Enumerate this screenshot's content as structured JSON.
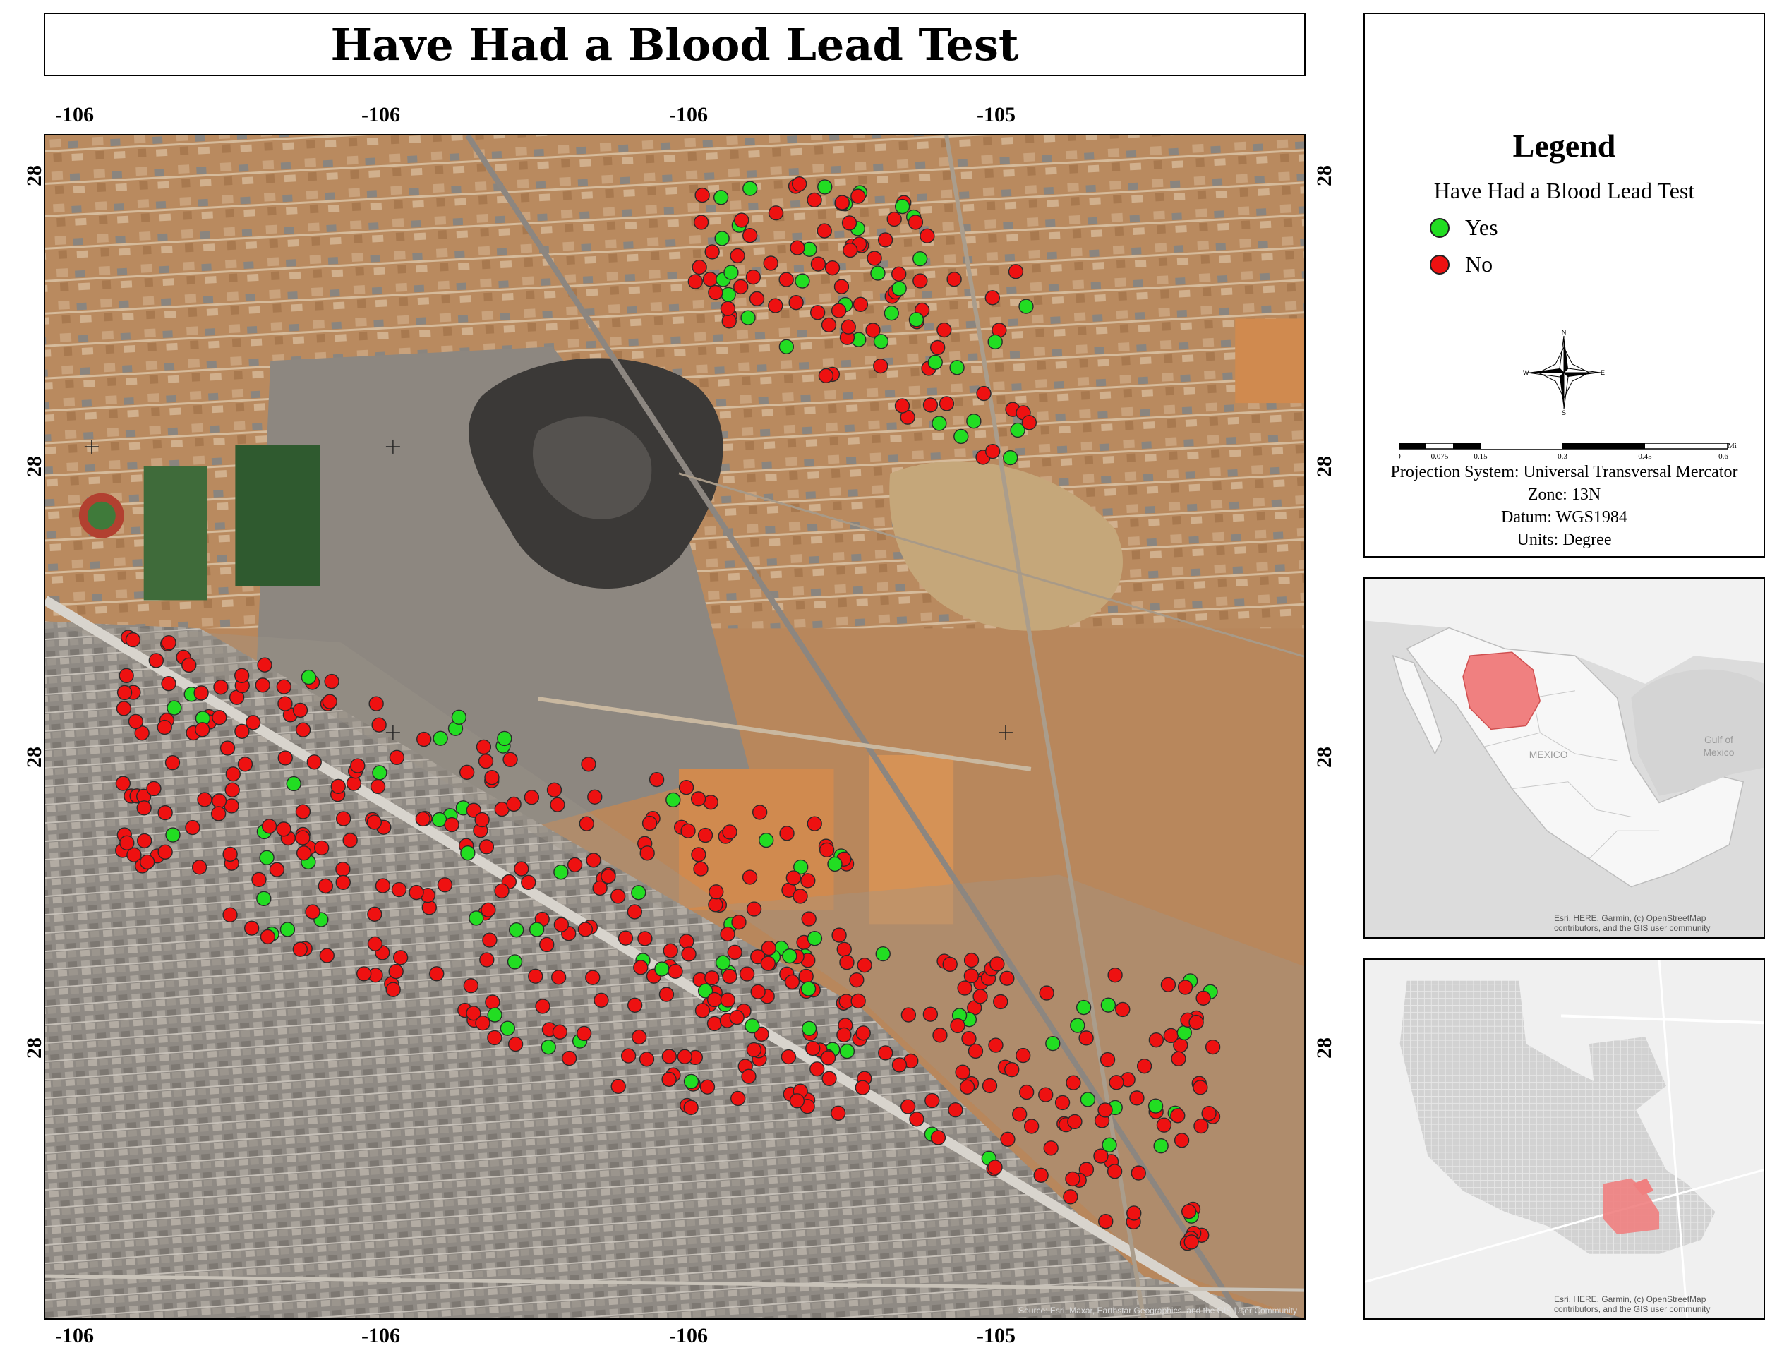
{
  "title": "Have Had a Blood Lead Test",
  "axes": {
    "top_ticks": [
      "-106",
      "-106",
      "-106",
      "-105"
    ],
    "bottom_ticks": [
      "-106",
      "-106",
      "-106",
      "-105"
    ],
    "left_ticks": [
      "28",
      "28",
      "28",
      "28"
    ],
    "right_ticks": [
      "28",
      "28",
      "28",
      "28"
    ]
  },
  "legend": {
    "title": "Legend",
    "subtitle": "Have Had a Blood Lead Test",
    "items": [
      {
        "label": "Yes",
        "color": "#22dd22"
      },
      {
        "label": "No",
        "color": "#ee1111"
      }
    ],
    "compass_letters": {
      "n": "N",
      "s": "S",
      "e": "E",
      "w": "W"
    },
    "scale_ticks": [
      "0",
      "0.075",
      "0.15",
      "0.3",
      "0.45",
      "0.6"
    ],
    "scale_unit": "Miles",
    "projection": "Projection System: Universal Transversal Mercator",
    "zone": "Zone: 13N",
    "datum": "Datum: WGS1984",
    "units": "Units: Degree"
  },
  "map_attribution": "Source: Esri, Maxar, Earthstar Geographics, and the GIS User Community",
  "inset_mexico": {
    "labels": [
      "Gulf of",
      "Mexico",
      "MEXICO"
    ],
    "attribution_line1": "Esri, HERE, Garmin, (c) OpenStreetMap",
    "attribution_line2": "contributors, and the GIS user community",
    "highlight_color": "#f08080"
  },
  "inset_city": {
    "attribution_line1": "Esri, HERE, Garmin, (c) OpenStreetMap",
    "attribution_line2": "contributors, and the GIS user community",
    "highlight_color": "#f08080"
  },
  "colors": {
    "yes": "#22dd22",
    "no": "#ee1111",
    "terrain": "#b8875c",
    "urban": "#9d9790"
  }
}
